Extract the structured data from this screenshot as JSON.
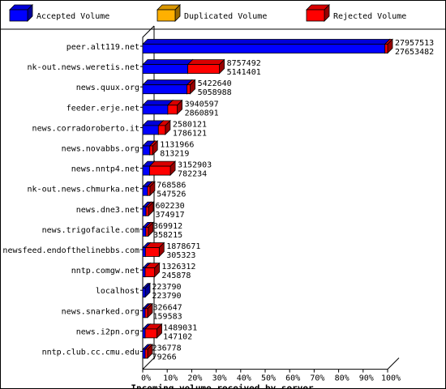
{
  "chart_data": {
    "type": "bar",
    "orientation": "horizontal",
    "stacked": false,
    "render_style": "3d",
    "title": "",
    "xlabel": "Incoming volume received by server",
    "ylabel": "",
    "xlim": [
      0,
      100
    ],
    "x_ticks": [
      "0%",
      "10%",
      "20%",
      "30%",
      "40%",
      "50%",
      "60%",
      "70%",
      "80%",
      "90%",
      "100%"
    ],
    "legend": {
      "placement": "top",
      "entries": [
        {
          "name": "Accepted Volume",
          "color": "#0000ff"
        },
        {
          "name": "Duplicated Volume",
          "color": "#ffb000"
        },
        {
          "name": "Rejected Volume",
          "color": "#ff0000"
        }
      ]
    },
    "categories": [
      "peer.alt119.net",
      "nk-out.news.weretis.net",
      "news.quux.org",
      "feeder.erje.net",
      "news.corradoroberto.it",
      "news.novabbs.org",
      "news.nntp4.net",
      "nk-out.news.chmurka.net",
      "news.dne3.net",
      "news.trigofacile.com",
      "newsfeed.endofthelinebbs.com",
      "nntp.comgw.net",
      "localhost",
      "news.snarked.org",
      "news.i2pn.org",
      "nntp.club.cc.cmu.edu"
    ],
    "total_labels": [
      "27957513",
      "8757492",
      "5422640",
      "3940597",
      "2580121",
      "1131966",
      "3152903",
      "768586",
      "602230",
      "369912",
      "1878671",
      "1326312",
      "223790",
      "326647",
      "1489031",
      "236778"
    ],
    "accepted_labels": [
      "27653482",
      "5141401",
      "5058988",
      "2860891",
      "1786121",
      "813219",
      "782234",
      "547526",
      "374917",
      "358215",
      "305323",
      "245878",
      "223790",
      "159583",
      "147102",
      "79266"
    ],
    "series": [
      {
        "name": "Accepted Volume",
        "values": [
          27653482,
          5141401,
          5058988,
          2860891,
          1786121,
          813219,
          782234,
          547526,
          374917,
          358215,
          305323,
          245878,
          223790,
          159583,
          147102,
          79266
        ]
      },
      {
        "name": "Duplicated Volume",
        "values": [
          0,
          0,
          0,
          0,
          0,
          0,
          0,
          0,
          0,
          0,
          0,
          0,
          0,
          0,
          0,
          0
        ]
      },
      {
        "name": "Rejected Volume",
        "values": [
          304031,
          3616091,
          363652,
          1079706,
          794000,
          318747,
          2370669,
          221060,
          227313,
          11697,
          1573348,
          1080434,
          0,
          167064,
          1341929,
          157512
        ]
      }
    ],
    "grid": false
  }
}
